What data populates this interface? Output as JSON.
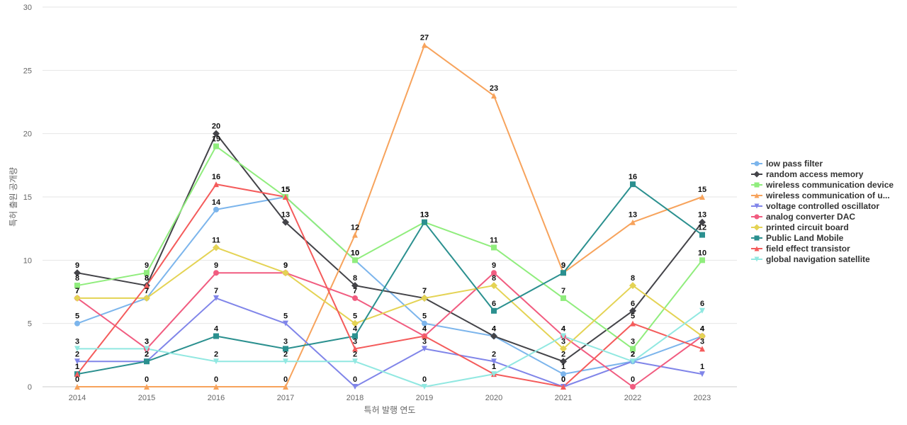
{
  "chart_data": {
    "type": "line",
    "title": "",
    "xlabel": "특허 발행 연도",
    "ylabel": "특허 출원 공개량",
    "x": [
      "2014",
      "2015",
      "2016",
      "2017",
      "2018",
      "2019",
      "2020",
      "2021",
      "2022",
      "2023"
    ],
    "ylim": [
      0,
      30
    ],
    "yticks": [
      0,
      5,
      10,
      15,
      20,
      25,
      30
    ],
    "grid": true,
    "legend_position": "right",
    "series": [
      {
        "name": "low pass filter",
        "color": "#7cb5ec",
        "marker": "circle",
        "values": [
          5,
          7,
          14,
          15,
          10,
          5,
          4,
          1,
          2,
          4
        ]
      },
      {
        "name": "random access memory",
        "color": "#434348",
        "marker": "diamond",
        "values": [
          9,
          8,
          20,
          13,
          8,
          7,
          4,
          2,
          6,
          13
        ]
      },
      {
        "name": "wireless communication device",
        "color": "#90ed7d",
        "marker": "square",
        "values": [
          8,
          9,
          19,
          15,
          10,
          13,
          11,
          7,
          3,
          10
        ]
      },
      {
        "name": "wireless communication of u...",
        "color": "#f7a35c",
        "marker": "triangle-up",
        "values": [
          0,
          0,
          0,
          0,
          12,
          27,
          23,
          9,
          13,
          15
        ]
      },
      {
        "name": "voltage controlled oscillator",
        "color": "#8085e9",
        "marker": "triangle-down",
        "values": [
          2,
          2,
          7,
          5,
          0,
          3,
          2,
          0,
          2,
          1
        ]
      },
      {
        "name": "analog converter DAC",
        "color": "#f15c80",
        "marker": "circle",
        "values": [
          7,
          3,
          9,
          9,
          7,
          4,
          9,
          4,
          0,
          4
        ]
      },
      {
        "name": "printed circuit board",
        "color": "#e4d354",
        "marker": "diamond",
        "values": [
          7,
          7,
          11,
          9,
          5,
          7,
          8,
          3,
          8,
          4
        ]
      },
      {
        "name": "Public Land Mobile",
        "color": "#2b908f",
        "marker": "square",
        "values": [
          1,
          2,
          4,
          3,
          4,
          13,
          6,
          9,
          16,
          12
        ]
      },
      {
        "name": "field effect transistor",
        "color": "#f45b5b",
        "marker": "triangle-up",
        "values": [
          1,
          8,
          16,
          15,
          3,
          4,
          1,
          0,
          5,
          3
        ]
      },
      {
        "name": "global navigation satellite",
        "color": "#91e8e1",
        "marker": "triangle-down",
        "values": [
          3,
          3,
          2,
          2,
          2,
          0,
          1,
          4,
          2,
          6
        ]
      }
    ]
  }
}
